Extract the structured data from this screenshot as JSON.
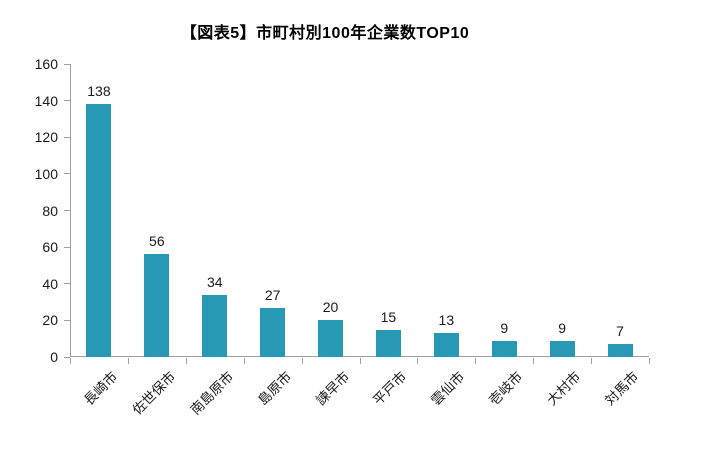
{
  "chart_data": {
    "type": "bar",
    "title": "【図表5】市町村別100年企業数TOP10",
    "categories": [
      "長崎市",
      "佐世保市",
      "南島原市",
      "島原市",
      "諫早市",
      "平戸市",
      "雲仙市",
      "壱岐市",
      "大村市",
      "対馬市"
    ],
    "values": [
      138,
      56,
      34,
      27,
      20,
      15,
      13,
      9,
      9,
      7
    ],
    "xlabel": "",
    "ylabel": "",
    "ylim": [
      0,
      160
    ],
    "y_ticks": [
      0,
      20,
      40,
      60,
      80,
      100,
      120,
      140,
      160
    ],
    "grid": false,
    "legend": false,
    "data_labels": true,
    "bar_color": "#2899b5",
    "axis_color": "#a0a0a0",
    "text_color": "#1a1a1a"
  }
}
